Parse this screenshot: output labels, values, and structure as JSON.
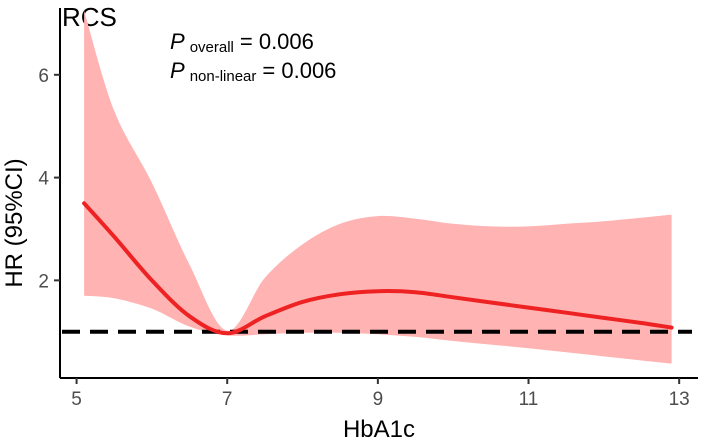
{
  "chart_data": {
    "type": "line",
    "title": "RCS",
    "xlabel": "HbA1c",
    "ylabel": "HR (95%CI)",
    "xlim": [
      4.78,
      13.25
    ],
    "ylim": [
      0.1,
      7.3
    ],
    "x_ticks": [
      5,
      7,
      9,
      11,
      13
    ],
    "y_ticks": [
      2,
      4,
      6
    ],
    "grid": false,
    "reference_line": {
      "y": 1,
      "style": "dashed",
      "color": "#000000"
    },
    "annotations": [
      {
        "italic": "P",
        "subscript": "overall",
        "text": "= 0.006"
      },
      {
        "italic": "P",
        "subscript": "non-linear",
        "text": "= 0.006"
      }
    ],
    "series": [
      {
        "color": "#ee2222",
        "band_color": "#ffb3b3",
        "points": [
          {
            "x": 5.1,
            "y": 3.5,
            "lower": 1.7,
            "upper": 7.25
          },
          {
            "x": 5.5,
            "y": 2.85,
            "lower": 1.65,
            "upper": 5.3
          },
          {
            "x": 6.0,
            "y": 2.0,
            "lower": 1.45,
            "upper": 3.9
          },
          {
            "x": 6.5,
            "y": 1.3,
            "lower": 1.1,
            "upper": 2.3
          },
          {
            "x": 7.0,
            "y": 0.97,
            "lower": 0.93,
            "upper": 1.02
          },
          {
            "x": 7.5,
            "y": 1.3,
            "lower": 0.95,
            "upper": 2.05
          },
          {
            "x": 8.0,
            "y": 1.58,
            "lower": 0.98,
            "upper": 2.7
          },
          {
            "x": 8.5,
            "y": 1.73,
            "lower": 0.98,
            "upper": 3.1
          },
          {
            "x": 9.0,
            "y": 1.79,
            "lower": 0.95,
            "upper": 3.25
          },
          {
            "x": 9.5,
            "y": 1.77,
            "lower": 0.9,
            "upper": 3.2
          },
          {
            "x": 10.0,
            "y": 1.67,
            "lower": 0.82,
            "upper": 3.1
          },
          {
            "x": 10.5,
            "y": 1.57,
            "lower": 0.75,
            "upper": 3.05
          },
          {
            "x": 11.0,
            "y": 1.47,
            "lower": 0.68,
            "upper": 3.05
          },
          {
            "x": 11.5,
            "y": 1.37,
            "lower": 0.6,
            "upper": 3.1
          },
          {
            "x": 12.0,
            "y": 1.27,
            "lower": 0.52,
            "upper": 3.15
          },
          {
            "x": 12.5,
            "y": 1.17,
            "lower": 0.44,
            "upper": 3.22
          },
          {
            "x": 12.9,
            "y": 1.08,
            "lower": 0.38,
            "upper": 3.28
          }
        ]
      }
    ]
  }
}
